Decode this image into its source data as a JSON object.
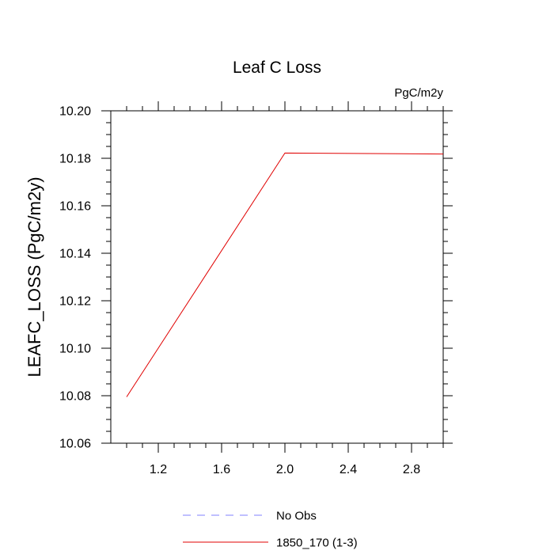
{
  "chart_data": {
    "type": "line",
    "title": "Leaf C Loss",
    "units": "PgC/m2y",
    "ylabel": "LEAFC_LOSS  (PgC/m2y)",
    "xlabel": "",
    "xlim": [
      0.9,
      3.0
    ],
    "ylim": [
      10.06,
      10.2
    ],
    "xticks": [
      1.2,
      1.6,
      2.0,
      2.4,
      2.8
    ],
    "xtick_labels": [
      "1.2",
      "1.6",
      "2.0",
      "2.4",
      "2.8"
    ],
    "yticks": [
      10.06,
      10.08,
      10.1,
      10.12,
      10.14,
      10.16,
      10.18,
      10.2
    ],
    "ytick_labels": [
      "10.06",
      "10.08",
      "10.10",
      "10.12",
      "10.14",
      "10.16",
      "10.18",
      "10.20"
    ],
    "series": [
      {
        "name": "No Obs",
        "color": "#8080ff",
        "dash": true,
        "x": [],
        "y": []
      },
      {
        "name": "1850_170 (1-3)",
        "color": "#e00000",
        "dash": false,
        "x": [
          1,
          2,
          3
        ],
        "y": [
          10.0795,
          10.1822,
          10.1818
        ]
      }
    ],
    "legend": "bottom"
  }
}
